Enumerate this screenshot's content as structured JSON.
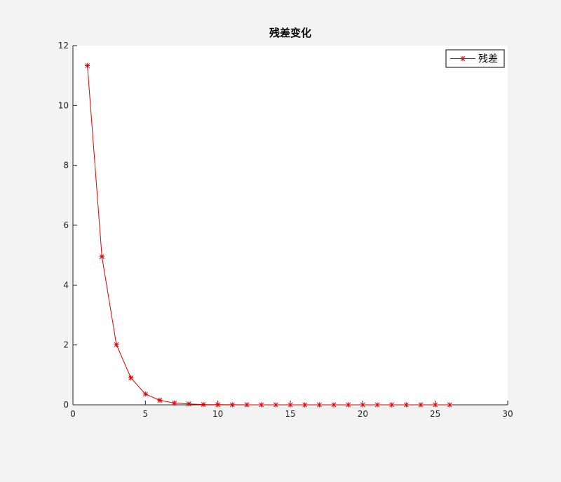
{
  "chart_data": {
    "type": "line",
    "title": "残差变化",
    "xlabel": "",
    "ylabel": "",
    "xlim": [
      0,
      30
    ],
    "ylim": [
      0,
      12
    ],
    "xticks": [
      0,
      5,
      10,
      15,
      20,
      25,
      30
    ],
    "yticks": [
      0,
      2,
      4,
      6,
      8,
      10,
      12
    ],
    "grid": false,
    "legend_position": "top-right",
    "marker": "asterisk",
    "series": [
      {
        "name": "残差",
        "color": "#dd0000",
        "x": [
          1,
          2,
          3,
          4,
          5,
          6,
          7,
          8,
          9,
          10,
          11,
          12,
          13,
          14,
          15,
          16,
          17,
          18,
          19,
          20,
          21,
          22,
          23,
          24,
          25,
          26
        ],
        "y": [
          11.33,
          4.95,
          2.01,
          0.9,
          0.36,
          0.15,
          0.06,
          0.03,
          0.01,
          0.005,
          0.002,
          0.001,
          0,
          0,
          0,
          0,
          0,
          0,
          0,
          0,
          0,
          0,
          0,
          0,
          0,
          0
        ]
      }
    ]
  }
}
